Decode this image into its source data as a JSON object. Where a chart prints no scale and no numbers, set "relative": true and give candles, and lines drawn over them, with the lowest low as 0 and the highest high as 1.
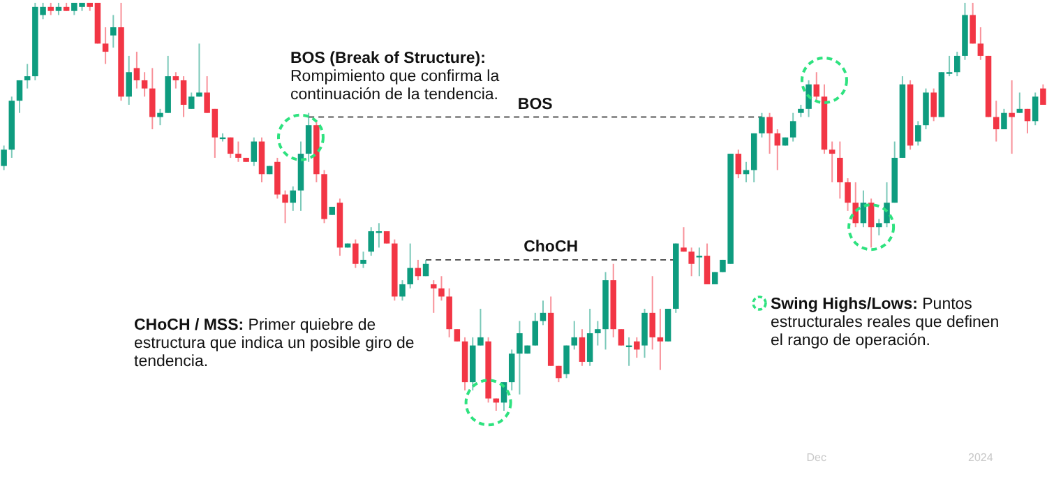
{
  "chart_data": {
    "type": "candlestick",
    "relative": true,
    "categories": [
      null,
      null,
      null,
      null,
      null,
      null,
      null,
      null,
      null,
      null,
      null,
      null,
      null,
      null,
      null,
      null,
      null,
      null,
      null,
      null,
      null,
      null,
      null,
      null,
      null,
      null,
      null,
      null,
      null,
      null,
      null,
      null,
      null,
      null,
      null,
      null,
      null,
      null,
      null,
      null,
      null,
      null,
      null,
      null,
      null,
      null,
      null,
      null,
      null,
      null,
      null,
      null,
      null,
      null,
      null,
      null,
      null,
      null,
      null,
      null,
      null,
      null,
      null,
      null,
      null,
      null,
      null,
      null,
      null,
      null,
      null,
      null,
      null,
      null,
      null,
      null,
      null,
      null,
      null,
      null,
      null,
      null,
      null,
      null,
      null,
      null,
      null,
      null,
      null,
      null,
      null,
      null,
      null,
      null,
      null,
      null,
      null,
      null,
      null,
      null,
      null,
      null,
      null,
      null,
      "Dec",
      null,
      null,
      null,
      null,
      null,
      null,
      null,
      null,
      null,
      null,
      null,
      null,
      null,
      null,
      null,
      null,
      null,
      null,
      null,
      null,
      "2024",
      null,
      null,
      null,
      null,
      null,
      null,
      null,
      null
    ],
    "ohlc": [
      [
        0.6,
        0.65,
        0.59,
        0.64
      ],
      [
        0.64,
        0.77,
        0.62,
        0.76
      ],
      [
        0.76,
        0.81,
        0.73,
        0.81
      ],
      [
        0.81,
        0.85,
        0.79,
        0.82
      ],
      [
        0.82,
        1,
        0.81,
        0.99
      ],
      [
        0.97,
        1,
        0.96,
        0.99
      ],
      [
        0.99,
        1,
        0.97,
        0.98
      ],
      [
        0.98,
        1,
        0.97,
        0.99
      ],
      [
        0.99,
        1,
        0.98,
        0.98
      ],
      [
        0.98,
        1,
        0.97,
        1
      ],
      [
        0.99,
        1,
        0.98,
        1
      ],
      [
        1,
        1,
        0.98,
        0.99
      ],
      [
        1,
        1,
        0.9,
        0.9
      ],
      [
        0.9,
        0.94,
        0.85,
        0.88
      ],
      [
        0.92,
        0.97,
        0.89,
        0.94
      ],
      [
        0.94,
        1,
        0.76,
        0.77
      ],
      [
        0.77,
        0.87,
        0.75,
        0.83
      ],
      [
        0.84,
        0.88,
        0.79,
        0.81
      ],
      [
        0.81,
        0.83,
        0.77,
        0.79
      ],
      [
        0.79,
        0.84,
        0.69,
        0.72
      ],
      [
        0.72,
        0.74,
        0.7,
        0.73
      ],
      [
        0.73,
        0.87,
        0.73,
        0.82
      ],
      [
        0.82,
        0.83,
        0.79,
        0.81
      ],
      [
        0.81,
        0.82,
        0.72,
        0.75
      ],
      [
        0.74,
        0.78,
        0.74,
        0.77
      ],
      [
        0.77,
        0.9,
        0.77,
        0.78
      ],
      [
        0.78,
        0.82,
        0.73,
        0.73
      ],
      [
        0.74,
        0.74,
        0.62,
        0.67
      ],
      [
        0.67,
        0.68,
        0.66,
        0.67
      ],
      [
        0.67,
        0.67,
        0.62,
        0.63
      ],
      [
        0.63,
        0.66,
        0.61,
        0.62
      ],
      [
        0.62,
        0.62,
        0.61,
        0.61
      ],
      [
        0.61,
        0.67,
        0.6,
        0.66
      ],
      [
        0.66,
        0.67,
        0.56,
        0.58
      ],
      [
        0.58,
        0.6,
        0.58,
        0.6
      ],
      [
        0.61,
        0.62,
        0.52,
        0.53
      ],
      [
        0.53,
        0.54,
        0.46,
        0.51
      ],
      [
        0.51,
        0.55,
        0.49,
        0.54
      ],
      [
        0.54,
        0.66,
        0.49,
        0.63
      ],
      [
        0.63,
        0.73,
        0.61,
        0.7
      ],
      [
        0.7,
        0.71,
        0.56,
        0.58
      ],
      [
        0.58,
        0.59,
        0.46,
        0.47
      ],
      [
        0.48,
        0.5,
        0.48,
        0.5
      ],
      [
        0.51,
        0.52,
        0.38,
        0.4
      ],
      [
        0.4,
        0.41,
        0.4,
        0.41
      ],
      [
        0.41,
        0.42,
        0.35,
        0.36
      ],
      [
        0.36,
        0.39,
        0.35,
        0.37
      ],
      [
        0.39,
        0.45,
        0.38,
        0.44
      ],
      [
        0.44,
        0.46,
        0.4,
        0.44
      ],
      [
        0.44,
        0.44,
        0.41,
        0.41
      ],
      [
        0.41,
        0.42,
        0.27,
        0.28
      ],
      [
        0.28,
        0.32,
        0.27,
        0.31
      ],
      [
        0.31,
        0.41,
        0.3,
        0.35
      ],
      [
        0.35,
        0.37,
        0.32,
        0.33
      ],
      [
        0.33,
        0.37,
        0.33,
        0.36
      ],
      [
        0.31,
        0.32,
        0.24,
        0.3
      ],
      [
        0.3,
        0.33,
        0.27,
        0.28
      ],
      [
        0.28,
        0.3,
        0.18,
        0.2
      ],
      [
        0.2,
        0.2,
        0.17,
        0.17
      ],
      [
        0.17,
        0.18,
        0.05,
        0.07
      ],
      [
        0.07,
        0.18,
        0.05,
        0.16
      ],
      [
        0.16,
        0.25,
        0.16,
        0.18
      ],
      [
        0.17,
        0.18,
        0.02,
        0.03
      ],
      [
        0.03,
        0.03,
        0,
        0.02
      ],
      [
        0.02,
        0.07,
        0,
        0.07
      ],
      [
        0.07,
        0.15,
        0.05,
        0.14
      ],
      [
        0.14,
        0.22,
        0.04,
        0.19
      ],
      [
        0.14,
        0.16,
        0.14,
        0.16
      ],
      [
        0.16,
        0.24,
        0.16,
        0.22
      ],
      [
        0.22,
        0.27,
        0.21,
        0.24
      ],
      [
        0.24,
        0.28,
        0.11,
        0.11
      ],
      [
        0.11,
        0.11,
        0.07,
        0.08
      ],
      [
        0.09,
        0.16,
        0.08,
        0.16
      ],
      [
        0.16,
        0.22,
        0.15,
        0.18
      ],
      [
        0.18,
        0.2,
        0.11,
        0.12
      ],
      [
        0.12,
        0.25,
        0.11,
        0.19
      ],
      [
        0.19,
        0.22,
        0.16,
        0.2
      ],
      [
        0.2,
        0.34,
        0.15,
        0.32
      ],
      [
        0.32,
        0.36,
        0.18,
        0.2
      ],
      [
        0.2,
        0.2,
        0.16,
        0.16
      ],
      [
        0.16,
        0.18,
        0.11,
        0.16
      ],
      [
        0.17,
        0.18,
        0.13,
        0.15
      ],
      [
        0.16,
        0.25,
        0.13,
        0.24
      ],
      [
        0.24,
        0.33,
        0.15,
        0.18
      ],
      [
        0.18,
        0.25,
        0.1,
        0.17
      ],
      [
        0.17,
        0.25,
        0.17,
        0.25
      ],
      [
        0.25,
        0.41,
        0.24,
        0.41
      ],
      [
        0.4,
        0.45,
        0.39,
        0.39
      ],
      [
        0.39,
        0.4,
        0.33,
        0.36
      ],
      [
        0.38,
        0.4,
        0.33,
        0.38
      ],
      [
        0.38,
        0.41,
        0.31,
        0.31
      ],
      [
        0.31,
        0.34,
        0.31,
        0.34
      ],
      [
        0.34,
        0.37,
        0.34,
        0.37
      ],
      [
        0.36,
        0.63,
        0.36,
        0.63
      ],
      [
        0.63,
        0.64,
        0.57,
        0.58
      ],
      [
        0.58,
        0.61,
        0.56,
        0.59
      ],
      [
        0.59,
        0.68,
        0.56,
        0.68
      ],
      [
        0.68,
        0.73,
        0.67,
        0.72
      ],
      [
        0.72,
        0.73,
        0.63,
        0.68
      ],
      [
        0.68,
        0.69,
        0.59,
        0.65
      ],
      [
        0.65,
        0.67,
        0.65,
        0.67
      ],
      [
        0.67,
        0.73,
        0.66,
        0.71
      ],
      [
        0.73,
        0.75,
        0.72,
        0.74
      ],
      [
        0.74,
        0.81,
        0.72,
        0.8
      ],
      [
        0.8,
        0.83,
        0.76,
        0.77
      ],
      [
        0.77,
        0.8,
        0.63,
        0.64
      ],
      [
        0.64,
        0.66,
        0.56,
        0.63
      ],
      [
        0.62,
        0.66,
        0.52,
        0.56
      ],
      [
        0.56,
        0.57,
        0.49,
        0.51
      ],
      [
        0.51,
        0.56,
        0.45,
        0.46
      ],
      [
        0.46,
        0.54,
        0.45,
        0.51
      ],
      [
        0.51,
        0.52,
        0.4,
        0.45
      ],
      [
        0.45,
        0.47,
        0.43,
        0.46
      ],
      [
        0.46,
        0.56,
        0.45,
        0.51
      ],
      [
        0.51,
        0.66,
        0.51,
        0.62
      ],
      [
        0.62,
        0.82,
        0.62,
        0.8
      ],
      [
        0.8,
        0.81,
        0.64,
        0.65
      ],
      [
        0.66,
        0.71,
        0.65,
        0.7
      ],
      [
        0.7,
        0.79,
        0.69,
        0.78
      ],
      [
        0.78,
        0.79,
        0.71,
        0.72
      ],
      [
        0.72,
        0.83,
        0.72,
        0.83
      ],
      [
        0.83,
        0.87,
        0.82,
        0.83
      ],
      [
        0.83,
        0.88,
        0.82,
        0.87
      ],
      [
        0.87,
        1,
        0.86,
        0.97
      ],
      [
        0.97,
        1,
        0.9,
        0.9
      ],
      [
        0.9,
        0.94,
        0.86,
        0.87
      ],
      [
        0.87,
        0.87,
        0.72,
        0.72
      ],
      [
        0.72,
        0.76,
        0.66,
        0.69
      ],
      [
        0.69,
        0.74,
        0.69,
        0.73
      ],
      [
        0.73,
        0.81,
        0.63,
        0.72
      ],
      [
        0.73,
        0.78,
        0.73,
        0.74
      ],
      [
        0.74,
        0.74,
        0.68,
        0.71
      ],
      [
        0.71,
        0.78,
        0.7,
        0.77
      ],
      [
        0.79,
        0.8,
        0.75,
        0.75
      ]
    ],
    "series": [
      {
        "type": "scatter",
        "values": [
          null,
          null,
          null,
          null,
          null,
          null,
          null,
          null,
          null,
          null,
          null,
          null,
          null,
          null,
          null,
          null,
          null,
          null,
          null,
          null,
          null,
          null,
          null,
          null,
          null,
          null,
          null,
          null,
          null,
          null,
          null,
          null,
          null,
          null,
          null,
          null,
          null,
          null,
          0.67,
          null,
          null,
          null,
          null,
          null,
          null,
          null,
          null,
          null,
          null,
          null,
          null,
          null,
          null,
          null,
          null,
          null,
          null,
          null,
          null,
          null,
          null,
          null,
          0.02,
          null,
          null,
          null,
          null,
          null,
          null,
          null,
          null,
          null,
          null,
          null,
          null,
          null,
          null,
          null,
          null,
          null,
          null,
          null,
          null,
          null,
          null,
          null,
          null,
          null,
          null,
          null,
          null,
          null,
          null,
          null,
          null,
          null,
          null,
          null,
          null,
          null,
          null,
          null,
          null,
          null,
          null,
          0.81,
          null,
          null,
          null,
          null,
          null,
          0.45,
          null,
          null,
          null,
          null,
          null,
          null,
          null,
          null,
          null,
          null,
          null,
          null,
          null,
          null,
          null,
          null,
          null,
          null,
          null,
          null,
          null,
          null
        ],
        "color": "#2ee27f",
        "marker": "circle",
        "line_style": "dashed"
      }
    ],
    "ref_lines": [
      {
        "axis": "y",
        "value": 0.72,
        "label": "BOS",
        "color": "#555555",
        "line_style": "dashed"
      },
      {
        "axis": "y",
        "value": 0.37,
        "label": "ChoCH",
        "color": "#555555",
        "line_style": "dashed"
      }
    ],
    "annotations": [
      "BOS (Break of Structure): Rompimiento que confirma la continuación de la tendencia.",
      "CHoCH / MSS: Primer quiebre de estructura que indica un posible giro de tendencia.",
      "Swing Highs/Lows: Puntos estructurales reales que definen el rango de operación."
    ]
  }
}
